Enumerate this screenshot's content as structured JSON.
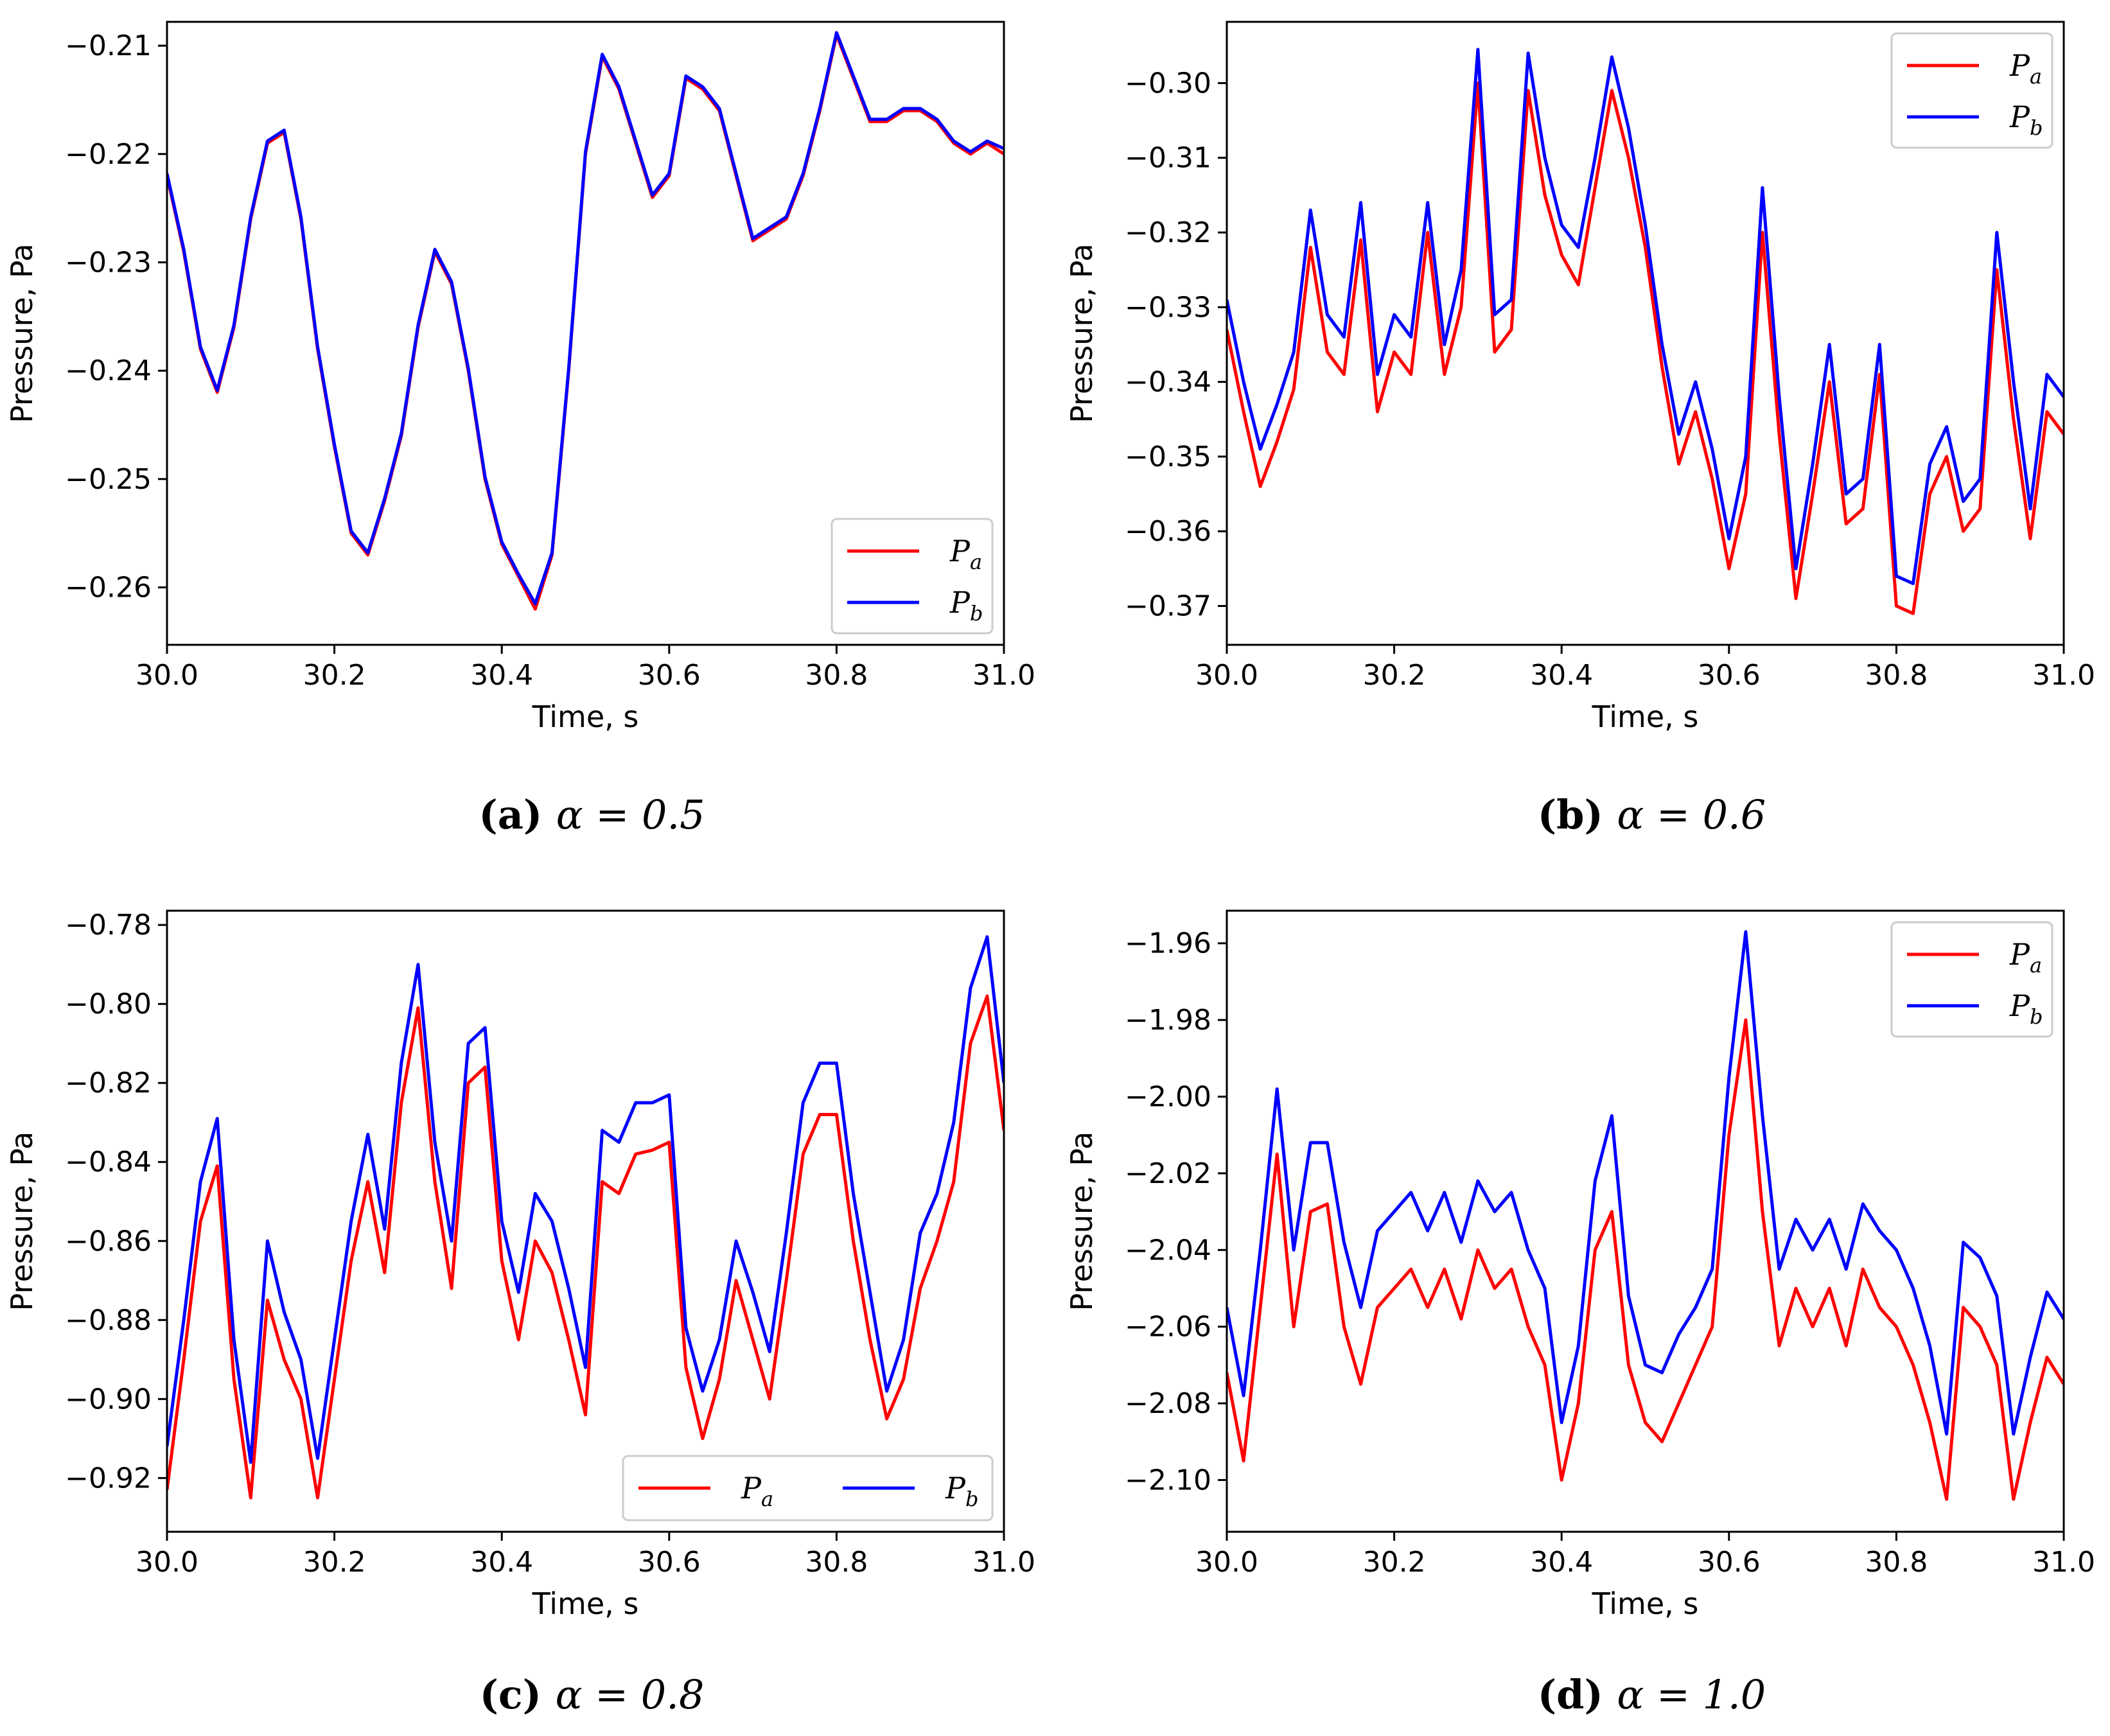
{
  "chart_data": [
    {
      "type": "line",
      "panel": "a",
      "caption": {
        "tag": "(a)",
        "expr": "α = 0.5"
      },
      "xlabel": "Time, s",
      "ylabel": "Pressure, Pa",
      "xlim": [
        30.0,
        31.0
      ],
      "ylim": [
        -0.2653,
        -0.2078
      ],
      "xticks": [
        "30.0",
        "30.2",
        "30.4",
        "30.6",
        "30.8",
        "31.0"
      ],
      "yticks": [
        "−0.21",
        "−0.22",
        "−0.23",
        "−0.24",
        "−0.25",
        "−0.26"
      ],
      "legend": {
        "position": "lower-right",
        "columns": 1
      },
      "series": [
        {
          "name": "P",
          "sub": "a",
          "color": "#ff0000",
          "x": [
            30.0,
            30.02,
            30.04,
            30.06,
            30.08,
            30.1,
            30.12,
            30.14,
            30.16,
            30.18,
            30.2,
            30.22,
            30.24,
            30.26,
            30.28,
            30.3,
            30.32,
            30.34,
            30.36,
            30.38,
            30.4,
            30.42,
            30.44,
            30.46,
            30.48,
            30.5,
            30.52,
            30.54,
            30.56,
            30.58,
            30.6,
            30.62,
            30.64,
            30.66,
            30.68,
            30.7,
            30.72,
            30.74,
            30.76,
            30.78,
            30.8,
            30.82,
            30.84,
            30.86,
            30.88,
            30.9,
            30.92,
            30.94,
            30.96,
            30.98,
            31.0
          ],
          "y": [
            -0.222,
            -0.229,
            -0.238,
            -0.242,
            -0.236,
            -0.226,
            -0.219,
            -0.218,
            -0.226,
            -0.238,
            -0.247,
            -0.255,
            -0.257,
            -0.252,
            -0.246,
            -0.236,
            -0.229,
            -0.232,
            -0.24,
            -0.25,
            -0.256,
            -0.259,
            -0.262,
            -0.257,
            -0.24,
            -0.22,
            -0.211,
            -0.214,
            -0.219,
            -0.224,
            -0.222,
            -0.213,
            -0.214,
            -0.216,
            -0.222,
            -0.228,
            -0.227,
            -0.226,
            -0.222,
            -0.216,
            -0.209,
            -0.213,
            -0.217,
            -0.217,
            -0.216,
            -0.216,
            -0.217,
            -0.219,
            -0.22,
            -0.219,
            -0.22
          ]
        },
        {
          "name": "P",
          "sub": "b",
          "color": "#0000ff",
          "x": [
            30.0,
            30.02,
            30.04,
            30.06,
            30.08,
            30.1,
            30.12,
            30.14,
            30.16,
            30.18,
            30.2,
            30.22,
            30.24,
            30.26,
            30.28,
            30.3,
            30.32,
            30.34,
            30.36,
            30.38,
            30.4,
            30.42,
            30.44,
            30.46,
            30.48,
            30.5,
            30.52,
            30.54,
            30.56,
            30.58,
            30.6,
            30.62,
            30.64,
            30.66,
            30.68,
            30.7,
            30.72,
            30.74,
            30.76,
            30.78,
            30.8,
            30.82,
            30.84,
            30.86,
            30.88,
            30.9,
            30.92,
            30.94,
            30.96,
            30.98,
            31.0
          ],
          "y": [
            -0.2218,
            -0.2288,
            -0.2378,
            -0.2418,
            -0.2358,
            -0.2258,
            -0.2188,
            -0.2178,
            -0.2258,
            -0.2378,
            -0.2468,
            -0.2548,
            -0.2568,
            -0.2518,
            -0.2458,
            -0.2358,
            -0.2288,
            -0.2318,
            -0.2398,
            -0.2498,
            -0.2558,
            -0.2588,
            -0.2615,
            -0.2568,
            -0.2398,
            -0.2198,
            -0.2108,
            -0.2138,
            -0.2188,
            -0.2238,
            -0.2218,
            -0.2128,
            -0.2138,
            -0.2158,
            -0.2218,
            -0.2278,
            -0.2268,
            -0.2258,
            -0.2218,
            -0.2158,
            -0.2088,
            -0.2128,
            -0.2168,
            -0.2168,
            -0.2158,
            -0.2158,
            -0.2168,
            -0.2188,
            -0.2198,
            -0.2188,
            -0.2195
          ]
        }
      ]
    },
    {
      "type": "line",
      "panel": "b",
      "caption": {
        "tag": "(b)",
        "expr": "α = 0.6"
      },
      "xlabel": "Time, s",
      "ylabel": "Pressure, Pa",
      "xlim": [
        30.0,
        31.0
      ],
      "ylim": [
        -0.3752,
        -0.2918
      ],
      "xticks": [
        "30.0",
        "30.2",
        "30.4",
        "30.6",
        "30.8",
        "31.0"
      ],
      "yticks": [
        "−0.30",
        "−0.31",
        "−0.32",
        "−0.33",
        "−0.34",
        "−0.35",
        "−0.36",
        "−0.37"
      ],
      "legend": {
        "position": "upper-right",
        "columns": 1
      },
      "series": [
        {
          "name": "P",
          "sub": "a",
          "color": "#ff0000",
          "x": [
            30.0,
            30.02,
            30.04,
            30.06,
            30.08,
            30.1,
            30.12,
            30.14,
            30.16,
            30.18,
            30.2,
            30.22,
            30.24,
            30.26,
            30.28,
            30.3,
            30.32,
            30.34,
            30.36,
            30.38,
            30.4,
            30.42,
            30.44,
            30.46,
            30.48,
            30.5,
            30.52,
            30.54,
            30.56,
            30.58,
            30.6,
            30.62,
            30.64,
            30.66,
            30.68,
            30.7,
            30.72,
            30.74,
            30.76,
            30.78,
            30.8,
            30.82,
            30.84,
            30.86,
            30.88,
            30.9,
            30.92,
            30.94,
            30.96,
            30.98,
            31.0
          ],
          "y": [
            -0.333,
            -0.344,
            -0.354,
            -0.348,
            -0.341,
            -0.322,
            -0.336,
            -0.339,
            -0.321,
            -0.344,
            -0.336,
            -0.339,
            -0.32,
            -0.339,
            -0.33,
            -0.3,
            -0.336,
            -0.333,
            -0.301,
            -0.315,
            -0.323,
            -0.327,
            -0.314,
            -0.301,
            -0.31,
            -0.322,
            -0.338,
            -0.351,
            -0.344,
            -0.353,
            -0.365,
            -0.355,
            -0.32,
            -0.347,
            -0.369,
            -0.355,
            -0.34,
            -0.359,
            -0.357,
            -0.339,
            -0.37,
            -0.371,
            -0.355,
            -0.35,
            -0.36,
            -0.357,
            -0.325,
            -0.345,
            -0.361,
            -0.344,
            -0.347
          ]
        },
        {
          "name": "P",
          "sub": "b",
          "color": "#0000ff",
          "x": [
            30.0,
            30.02,
            30.04,
            30.06,
            30.08,
            30.1,
            30.12,
            30.14,
            30.16,
            30.18,
            30.2,
            30.22,
            30.24,
            30.26,
            30.28,
            30.3,
            30.32,
            30.34,
            30.36,
            30.38,
            30.4,
            30.42,
            30.44,
            30.46,
            30.48,
            30.5,
            30.52,
            30.54,
            30.56,
            30.58,
            30.6,
            30.62,
            30.64,
            30.66,
            30.68,
            30.7,
            30.72,
            30.74,
            30.76,
            30.78,
            30.8,
            30.82,
            30.84,
            30.86,
            30.88,
            30.9,
            30.92,
            30.94,
            30.96,
            30.98,
            31.0
          ],
          "y": [
            -0.329,
            -0.34,
            -0.349,
            -0.343,
            -0.336,
            -0.317,
            -0.331,
            -0.334,
            -0.316,
            -0.339,
            -0.331,
            -0.334,
            -0.316,
            -0.335,
            -0.325,
            -0.2955,
            -0.331,
            -0.329,
            -0.296,
            -0.31,
            -0.319,
            -0.322,
            -0.31,
            -0.2965,
            -0.306,
            -0.319,
            -0.335,
            -0.347,
            -0.34,
            -0.349,
            -0.361,
            -0.35,
            -0.314,
            -0.342,
            -0.365,
            -0.351,
            -0.335,
            -0.355,
            -0.353,
            -0.335,
            -0.366,
            -0.367,
            -0.351,
            -0.346,
            -0.356,
            -0.353,
            -0.32,
            -0.34,
            -0.357,
            -0.339,
            -0.342
          ]
        }
      ]
    },
    {
      "type": "line",
      "panel": "c",
      "caption": {
        "tag": "(c)",
        "expr": "α = 0.8"
      },
      "xlabel": "Time, s",
      "ylabel": "Pressure, Pa",
      "xlim": [
        30.0,
        31.0
      ],
      "ylim": [
        -0.9336,
        -0.7764
      ],
      "xticks": [
        "30.0",
        "30.2",
        "30.4",
        "30.6",
        "30.8",
        "31.0"
      ],
      "yticks": [
        "−0.78",
        "−0.80",
        "−0.82",
        "−0.84",
        "−0.86",
        "−0.88",
        "−0.90",
        "−0.92"
      ],
      "legend": {
        "position": "lower-right",
        "columns": 2
      },
      "series": [
        {
          "name": "P",
          "sub": "a",
          "color": "#ff0000",
          "x": [
            30.0,
            30.02,
            30.04,
            30.06,
            30.08,
            30.1,
            30.12,
            30.14,
            30.16,
            30.18,
            30.2,
            30.22,
            30.24,
            30.26,
            30.28,
            30.3,
            30.32,
            30.34,
            30.36,
            30.38,
            30.4,
            30.42,
            30.44,
            30.46,
            30.48,
            30.5,
            30.52,
            30.54,
            30.56,
            30.58,
            30.6,
            30.62,
            30.64,
            30.66,
            30.68,
            30.7,
            30.72,
            30.74,
            30.76,
            30.78,
            30.8,
            30.82,
            30.84,
            30.86,
            30.88,
            30.9,
            30.92,
            30.94,
            30.96,
            30.98,
            31.0
          ],
          "y": [
            -0.923,
            -0.89,
            -0.855,
            -0.841,
            -0.895,
            -0.925,
            -0.875,
            -0.89,
            -0.9,
            -0.925,
            -0.895,
            -0.865,
            -0.845,
            -0.868,
            -0.825,
            -0.801,
            -0.845,
            -0.872,
            -0.82,
            -0.816,
            -0.865,
            -0.885,
            -0.86,
            -0.868,
            -0.885,
            -0.904,
            -0.845,
            -0.848,
            -0.838,
            -0.837,
            -0.835,
            -0.892,
            -0.91,
            -0.895,
            -0.87,
            -0.885,
            -0.9,
            -0.87,
            -0.838,
            -0.828,
            -0.828,
            -0.86,
            -0.885,
            -0.905,
            -0.895,
            -0.872,
            -0.86,
            -0.845,
            -0.81,
            -0.798,
            -0.832
          ]
        },
        {
          "name": "P",
          "sub": "b",
          "color": "#0000ff",
          "x": [
            30.0,
            30.02,
            30.04,
            30.06,
            30.08,
            30.1,
            30.12,
            30.14,
            30.16,
            30.18,
            30.2,
            30.22,
            30.24,
            30.26,
            30.28,
            30.3,
            30.32,
            30.34,
            30.36,
            30.38,
            30.4,
            30.42,
            30.44,
            30.46,
            30.48,
            30.5,
            30.52,
            30.54,
            30.56,
            30.58,
            30.6,
            30.62,
            30.64,
            30.66,
            30.68,
            30.7,
            30.72,
            30.74,
            30.76,
            30.78,
            30.8,
            30.82,
            30.84,
            30.86,
            30.88,
            30.9,
            30.92,
            30.94,
            30.96,
            30.98,
            31.0
          ],
          "y": [
            -0.912,
            -0.88,
            -0.845,
            -0.829,
            -0.885,
            -0.916,
            -0.86,
            -0.878,
            -0.89,
            -0.915,
            -0.885,
            -0.855,
            -0.833,
            -0.857,
            -0.815,
            -0.79,
            -0.835,
            -0.86,
            -0.81,
            -0.806,
            -0.855,
            -0.873,
            -0.848,
            -0.855,
            -0.872,
            -0.892,
            -0.832,
            -0.835,
            -0.825,
            -0.825,
            -0.823,
            -0.882,
            -0.898,
            -0.885,
            -0.86,
            -0.873,
            -0.888,
            -0.858,
            -0.825,
            -0.815,
            -0.815,
            -0.848,
            -0.873,
            -0.898,
            -0.885,
            -0.858,
            -0.848,
            -0.83,
            -0.796,
            -0.783,
            -0.82
          ]
        }
      ]
    },
    {
      "type": "line",
      "panel": "d",
      "caption": {
        "tag": "(d)",
        "expr": "α = 1.0"
      },
      "xlabel": "Time, s",
      "ylabel": "Pressure, Pa",
      "xlim": [
        30.0,
        31.0
      ],
      "ylim": [
        -2.1135,
        -1.9515
      ],
      "xticks": [
        "30.0",
        "30.2",
        "30.4",
        "30.6",
        "30.8",
        "31.0"
      ],
      "yticks": [
        "−1.96",
        "−1.98",
        "−2.00",
        "−2.02",
        "−2.04",
        "−2.06",
        "−2.08",
        "−2.10"
      ],
      "legend": {
        "position": "upper-right",
        "columns": 1
      },
      "series": [
        {
          "name": "P",
          "sub": "a",
          "color": "#ff0000",
          "x": [
            30.0,
            30.02,
            30.04,
            30.06,
            30.08,
            30.1,
            30.12,
            30.14,
            30.16,
            30.18,
            30.2,
            30.22,
            30.24,
            30.26,
            30.28,
            30.3,
            30.32,
            30.34,
            30.36,
            30.38,
            30.4,
            30.42,
            30.44,
            30.46,
            30.48,
            30.5,
            30.52,
            30.54,
            30.56,
            30.58,
            30.6,
            30.62,
            30.64,
            30.66,
            30.68,
            30.7,
            30.72,
            30.74,
            30.76,
            30.78,
            30.8,
            30.82,
            30.84,
            30.86,
            30.88,
            30.9,
            30.92,
            30.94,
            30.96,
            30.98,
            31.0
          ],
          "y": [
            -2.072,
            -2.095,
            -2.055,
            -2.015,
            -2.06,
            -2.03,
            -2.028,
            -2.06,
            -2.075,
            -2.055,
            -2.05,
            -2.045,
            -2.055,
            -2.045,
            -2.058,
            -2.04,
            -2.05,
            -2.045,
            -2.06,
            -2.07,
            -2.1,
            -2.08,
            -2.04,
            -2.03,
            -2.07,
            -2.085,
            -2.09,
            -2.08,
            -2.07,
            -2.06,
            -2.01,
            -1.98,
            -2.03,
            -2.065,
            -2.05,
            -2.06,
            -2.05,
            -2.065,
            -2.045,
            -2.055,
            -2.06,
            -2.07,
            -2.085,
            -2.105,
            -2.055,
            -2.06,
            -2.07,
            -2.105,
            -2.085,
            -2.068,
            -2.075
          ]
        },
        {
          "name": "P",
          "sub": "b",
          "color": "#0000ff",
          "x": [
            30.0,
            30.02,
            30.04,
            30.06,
            30.08,
            30.1,
            30.12,
            30.14,
            30.16,
            30.18,
            30.2,
            30.22,
            30.24,
            30.26,
            30.28,
            30.3,
            30.32,
            30.34,
            30.36,
            30.38,
            30.4,
            30.42,
            30.44,
            30.46,
            30.48,
            30.5,
            30.52,
            30.54,
            30.56,
            30.58,
            30.6,
            30.62,
            30.64,
            30.66,
            30.68,
            30.7,
            30.72,
            30.74,
            30.76,
            30.78,
            30.8,
            30.82,
            30.84,
            30.86,
            30.88,
            30.9,
            30.92,
            30.94,
            30.96,
            30.98,
            31.0
          ],
          "y": [
            -2.055,
            -2.078,
            -2.04,
            -1.998,
            -2.04,
            -2.012,
            -2.012,
            -2.038,
            -2.055,
            -2.035,
            -2.03,
            -2.025,
            -2.035,
            -2.025,
            -2.038,
            -2.022,
            -2.03,
            -2.025,
            -2.04,
            -2.05,
            -2.085,
            -2.065,
            -2.022,
            -2.005,
            -2.052,
            -2.07,
            -2.072,
            -2.062,
            -2.055,
            -2.045,
            -1.995,
            -1.957,
            -2.005,
            -2.045,
            -2.032,
            -2.04,
            -2.032,
            -2.045,
            -2.028,
            -2.035,
            -2.04,
            -2.05,
            -2.065,
            -2.088,
            -2.038,
            -2.042,
            -2.052,
            -2.088,
            -2.068,
            -2.051,
            -2.058
          ]
        }
      ]
    }
  ]
}
